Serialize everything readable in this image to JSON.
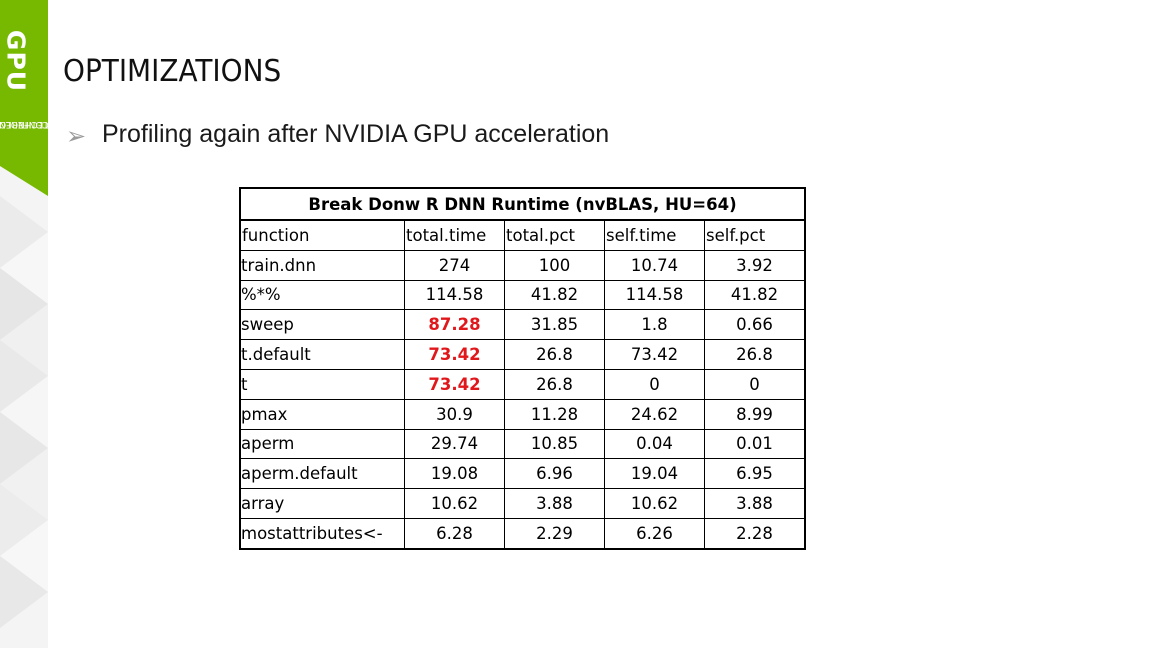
{
  "logo": {
    "brand": "GPU",
    "line1": "TECHNOLOGY",
    "line2": "CONFERENCE",
    "brand_color": "#76b900"
  },
  "slide": {
    "title": "OPTIMIZATIONS",
    "bullet": "Profiling again after NVIDIA GPU acceleration"
  },
  "table": {
    "caption": "Break Donw R DNN Runtime (nvBLAS, HU=64)",
    "headers": [
      "function",
      "total.time",
      "total.pct",
      "self.time",
      "self.pct"
    ],
    "rows": [
      [
        "train.dnn",
        "274",
        "100",
        "10.74",
        "3.92"
      ],
      [
        "%*%",
        "114.58",
        "41.82",
        "114.58",
        "41.82"
      ],
      [
        "sweep",
        "87.28",
        "31.85",
        "1.8",
        "0.66"
      ],
      [
        "t.default",
        "73.42",
        "26.8",
        "73.42",
        "26.8"
      ],
      [
        "t",
        "73.42",
        "26.8",
        "0",
        "0"
      ],
      [
        "pmax",
        "30.9",
        "11.28",
        "24.62",
        "8.99"
      ],
      [
        "aperm",
        "29.74",
        "10.85",
        "0.04",
        "0.01"
      ],
      [
        "aperm.default",
        "19.08",
        "6.96",
        "19.04",
        "6.95"
      ],
      [
        "array",
        "10.62",
        "3.88",
        "10.62",
        "3.88"
      ],
      [
        "mostattributes<-",
        "6.28",
        "2.29",
        "6.26",
        "2.28"
      ]
    ],
    "highlight_color": "#e0181c"
  }
}
